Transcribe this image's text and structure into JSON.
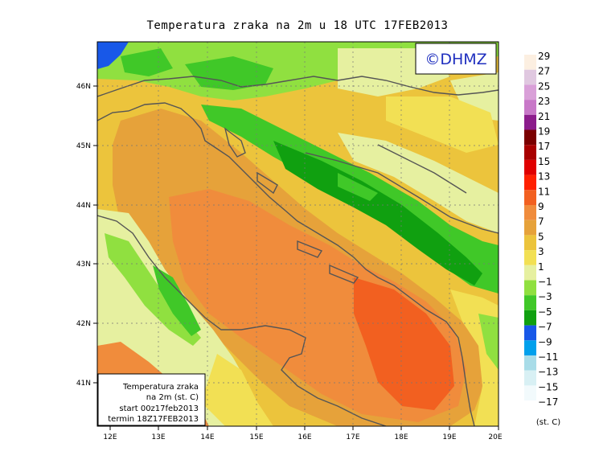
{
  "title": "Temperatura zraka na 2m u 18 UTC 17FEB2013",
  "logo": "©DHMZ",
  "info_box": {
    "line1": "Temperatura zraka",
    "line2": "na 2m (st. C)",
    "line3": "start 00z17feb2013",
    "line4": "termin 18Z17FEB2013"
  },
  "lon_labels": [
    "12E",
    "13E",
    "14E",
    "15E",
    "16E",
    "17E",
    "18E",
    "19E",
    "20E"
  ],
  "lat_labels": [
    "46N",
    "45N",
    "44N",
    "43N",
    "42N",
    "41N"
  ],
  "legend": {
    "units": "(st. C)",
    "labels": [
      "29",
      "27",
      "25",
      "23",
      "21",
      "19",
      "17",
      "15",
      "13",
      "11",
      "9",
      "7",
      "5",
      "3",
      "1",
      "−1",
      "−3",
      "−5",
      "−7",
      "−9",
      "−11",
      "−13",
      "−15",
      "−17"
    ],
    "colors": [
      "#fcefe1",
      "#e0c8e0",
      "#d9a0d8",
      "#c878c8",
      "#8c1c8c",
      "#7a0000",
      "#a80000",
      "#e00000",
      "#ff2000",
      "#f26020",
      "#f08c3c",
      "#e6a23a",
      "#ecc43c",
      "#f2e054",
      "#e6f0a0",
      "#90e040",
      "#40c828",
      "#10a010",
      "#1858e8",
      "#00a0ec",
      "#a8dce8",
      "#d8f0f4",
      "#f2fafc"
    ]
  }
}
